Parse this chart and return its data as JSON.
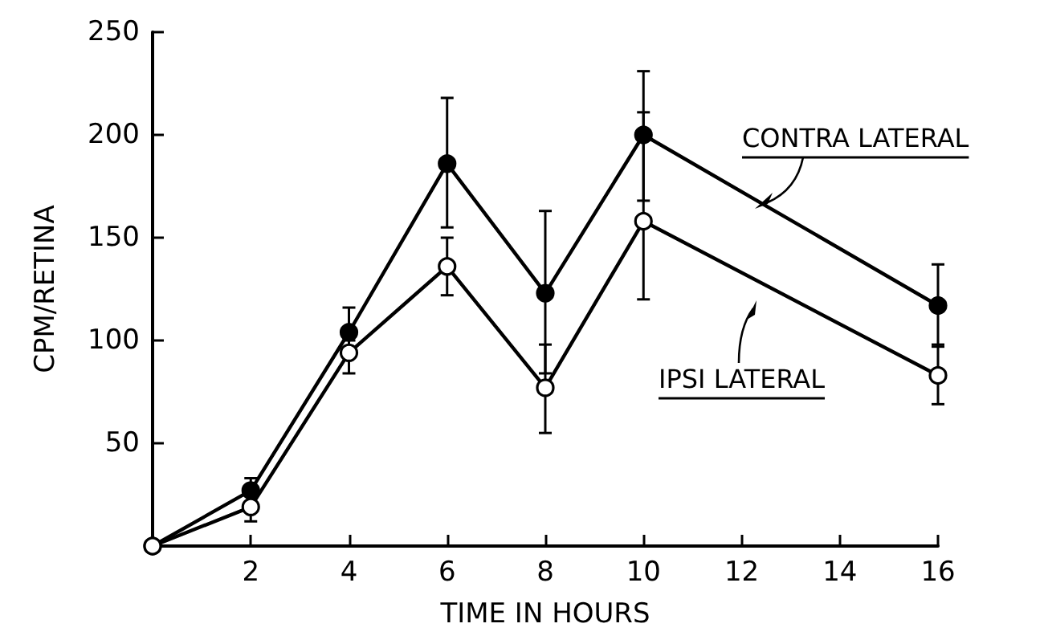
{
  "chart_data": {
    "type": "line",
    "xlabel": "TIME IN HOURS",
    "ylabel": "CPM/RETINA",
    "x": [
      0,
      2,
      4,
      6,
      8,
      10,
      16
    ],
    "series": [
      {
        "name": "CONTRA LATERAL",
        "color": "#000000",
        "marker": "circle",
        "values": [
          0,
          27,
          104,
          186,
          123,
          200,
          117
        ],
        "errors": [
          null,
          6,
          12,
          [
            155,
            218
          ],
          [
            84,
            163
          ],
          [
            168,
            231
          ],
          [
            97,
            137
          ]
        ]
      },
      {
        "name": "IPSI LATERAL",
        "color": "#000000",
        "marker": "circle",
        "values": [
          0,
          19,
          94,
          136,
          77,
          158,
          83
        ],
        "errors": [
          null,
          [
            12,
            25
          ],
          [
            84,
            100
          ],
          [
            122,
            150
          ],
          [
            55,
            98
          ],
          [
            120,
            211
          ],
          [
            69,
            98
          ]
        ]
      }
    ],
    "xlim": [
      0,
      16
    ],
    "xticks": [
      2,
      4,
      6,
      8,
      10,
      12,
      14,
      16
    ],
    "ylim": [
      0,
      250
    ],
    "yticks": [
      50,
      100,
      150,
      200,
      250
    ],
    "grid": false,
    "legend": "right",
    "line_style": "solid"
  }
}
